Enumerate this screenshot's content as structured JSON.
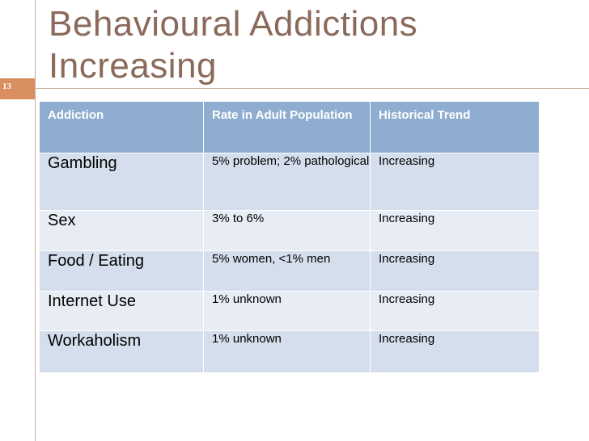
{
  "slide": {
    "number": "13",
    "title_line1": "Behavioural Addictions",
    "title_line2": "Increasing"
  },
  "table": {
    "headers": [
      "Addiction",
      "Rate in Adult Population",
      "Historical Trend"
    ],
    "rows": [
      {
        "addiction": "Gambling",
        "rate": "5% problem; 2% pathological",
        "trend": "Increasing"
      },
      {
        "addiction": "Sex",
        "rate": "3% to 6%",
        "trend": "Increasing"
      },
      {
        "addiction": "Food / Eating",
        "rate": "5% women, <1% men",
        "trend": "Increasing"
      },
      {
        "addiction": "Internet Use",
        "rate": "1% unknown",
        "trend": "Increasing"
      },
      {
        "addiction": "Workaholism",
        "rate": "1% unknown",
        "trend": "Increasing"
      }
    ]
  },
  "colors": {
    "accent": "#d88e5e",
    "title": "#8a6a5a",
    "header_bg": "#8eadd0",
    "row_light": "#e8edf5",
    "row_dark": "#d5deec"
  }
}
